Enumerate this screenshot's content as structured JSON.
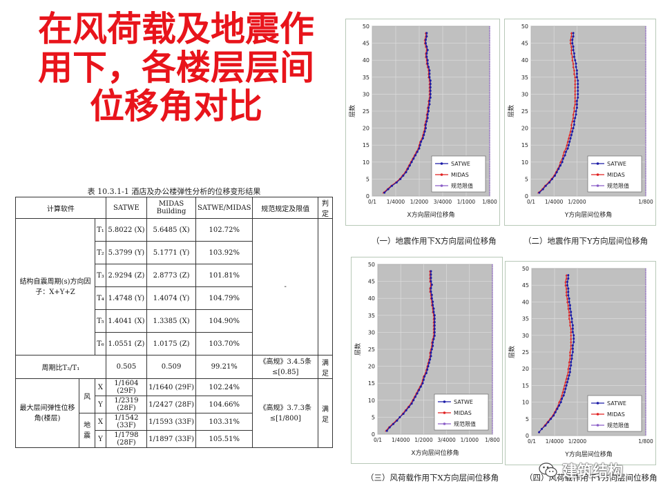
{
  "title_lines": [
    "在风荷载及地震作",
    "用下，各楼层层间",
    "位移角对比"
  ],
  "table": {
    "caption": "表 10.3.1-1  酒店及办公楼弹性分析的位移变形结果",
    "headers": [
      "计算软件",
      "SATWE",
      "MIDAS Building",
      "SATWE/MIDAS",
      "规范规定及限值",
      "判定"
    ],
    "period_group_label": "结构自震周期(s)方向因子：X+Y+Z",
    "period_rows": [
      {
        "label": "T₁",
        "satwe": "5.8022 (X)",
        "midas": "5.6485 (X)",
        "ratio": "102.72%"
      },
      {
        "label": "T₂",
        "satwe": "5.3799 (Y)",
        "midas": "5.1771 (Y)",
        "ratio": "103.92%"
      },
      {
        "label": "T₃",
        "satwe": "2.9294 (Z)",
        "midas": "2.8773 (Z)",
        "ratio": "101.81%"
      },
      {
        "label": "T₄",
        "satwe": "1.4748 (Y)",
        "midas": "1.4074 (Y)",
        "ratio": "104.79%"
      },
      {
        "label": "T₅",
        "satwe": "1.4041 (X)",
        "midas": "1.3385 (X)",
        "ratio": "104.90%"
      },
      {
        "label": "T₆",
        "satwe": "1.0551 (Z)",
        "midas": "1.0175 (Z)",
        "ratio": "103.70%"
      }
    ],
    "period_spec": "-",
    "ratio_row": {
      "label": "周期比T₃/T₁",
      "satwe": "0.505",
      "midas": "0.509",
      "ratio": "99.21%",
      "spec": "《高规》3.4.5条≤[0.85]",
      "verdict": "满足"
    },
    "drift_group_label": "最大层间弹性位移角(楼层)",
    "wind_label": "风",
    "quake_label": "地震",
    "drift_rows": [
      {
        "dir": "X",
        "satwe": "1/1604 (29F)",
        "midas": "1/1640 (29F)",
        "ratio": "102.24%"
      },
      {
        "dir": "Y",
        "satwe": "1/2319 (28F)",
        "midas": "1/2427 (28F)",
        "ratio": "104.66%"
      },
      {
        "dir": "X",
        "satwe": "1/1542 (33F)",
        "midas": "1/1593 (33F)",
        "ratio": "103.31%"
      },
      {
        "dir": "Y",
        "satwe": "1/1798 (28F)",
        "midas": "1/1897 (33F)",
        "ratio": "105.51%"
      }
    ],
    "drift_spec": "《高规》3.7.3条≤[1/800]",
    "drift_verdict": "满足"
  },
  "chart_data": [
    {
      "type": "line",
      "caption": "（一）地震作用下X方向层间位移角",
      "xlabel": "X方向层间位移角",
      "ylabel": "层数",
      "x_tick_labels": [
        "0/1",
        "1/4000",
        "1/2000",
        "3/4000",
        "1/1000",
        "1/800"
      ],
      "xlim": [
        0,
        0.00125
      ],
      "ylim": [
        0,
        50
      ],
      "y_ticks": [
        0,
        5,
        10,
        15,
        20,
        25,
        30,
        35,
        40,
        45,
        50
      ],
      "legend": [
        "SATWE",
        "MIDAS",
        "规范限值"
      ],
      "legend_position": "bottom-right",
      "limit_value": 0.00125,
      "floor_start": 1,
      "floor_end": 48,
      "satwe": [
        0.00013,
        0.00017,
        0.00021,
        0.00026,
        0.0003,
        0.00033,
        0.00036,
        0.00038,
        0.0004,
        0.00042,
        0.00044,
        0.00046,
        0.00048,
        0.0005,
        0.00051,
        0.00052,
        0.00054,
        0.00055,
        0.00056,
        0.00057,
        0.00057,
        0.00058,
        0.00059,
        0.00059,
        0.0006,
        0.0006,
        0.00061,
        0.00061,
        0.00062,
        0.00062,
        0.00062,
        0.00062,
        0.00062,
        0.00062,
        0.00061,
        0.00061,
        0.00061,
        0.0006,
        0.00059,
        0.00059,
        0.00058,
        0.00058,
        0.00059,
        0.00058,
        0.00057,
        0.00057,
        0.00058,
        0.00058
      ],
      "midas": [
        0.00012,
        0.00016,
        0.0002,
        0.00025,
        0.00029,
        0.00032,
        0.00035,
        0.00037,
        0.00039,
        0.00041,
        0.00043,
        0.00045,
        0.00047,
        0.00049,
        0.0005,
        0.00051,
        0.00053,
        0.00054,
        0.00055,
        0.00056,
        0.00056,
        0.00057,
        0.00058,
        0.00058,
        0.00059,
        0.00059,
        0.0006,
        0.0006,
        0.00061,
        0.00061,
        0.00061,
        0.00061,
        0.00061,
        0.00061,
        0.0006,
        0.0006,
        0.0006,
        0.00059,
        0.00058,
        0.00058,
        0.00057,
        0.00057,
        0.00058,
        0.00057,
        0.00056,
        0.00056,
        0.00057,
        0.00057
      ]
    },
    {
      "type": "line",
      "caption": "（二）地震作用下Y方向层间位移角",
      "xlabel": "Y方向层间位移角",
      "ylabel": "层数",
      "x_tick_labels": [
        "0/1",
        "1/4000",
        "1/2000",
        "1/800"
      ],
      "xlim": [
        0,
        0.00125
      ],
      "ylim": [
        0,
        50
      ],
      "y_ticks": [
        0,
        5,
        10,
        15,
        20,
        25,
        30,
        35,
        40,
        45,
        50
      ],
      "legend": [
        "SATWE",
        "MIDAS",
        "规范限值"
      ],
      "legend_position": "bottom-right",
      "limit_value": 0.00125,
      "floor_start": 1,
      "floor_end": 48,
      "satwe": [
        9e-05,
        0.00013,
        0.00016,
        0.0002,
        0.00023,
        0.00026,
        0.00028,
        0.0003,
        0.00032,
        0.00034,
        0.00035,
        0.00037,
        0.00038,
        0.0004,
        0.00041,
        0.00042,
        0.00043,
        0.00044,
        0.00045,
        0.00046,
        0.00047,
        0.00047,
        0.00048,
        0.00049,
        0.00049,
        0.0005,
        0.0005,
        0.0005,
        0.00051,
        0.00051,
        0.00051,
        0.00051,
        0.00051,
        0.00051,
        0.0005,
        0.0005,
        0.0005,
        0.00049,
        0.00049,
        0.00048,
        0.00047,
        0.00047,
        0.00046,
        0.00046,
        0.00045,
        0.00045,
        0.00046,
        0.00046
      ],
      "midas": [
        8e-05,
        0.00012,
        0.00015,
        0.00019,
        0.00022,
        0.00025,
        0.00027,
        0.00029,
        0.00031,
        0.00032,
        0.00034,
        0.00035,
        0.00036,
        0.00038,
        0.00039,
        0.0004,
        0.00041,
        0.00042,
        0.00043,
        0.00044,
        0.00044,
        0.00045,
        0.00046,
        0.00046,
        0.00047,
        0.00047,
        0.00048,
        0.00048,
        0.00048,
        0.00048,
        0.00048,
        0.00048,
        0.00048,
        0.00048,
        0.00048,
        0.00047,
        0.00047,
        0.00046,
        0.00046,
        0.00045,
        0.00045,
        0.00044,
        0.00044,
        0.00044,
        0.00043,
        0.00043,
        0.00044,
        0.00044
      ]
    },
    {
      "type": "line",
      "caption": "（三）风荷载作用下X方向层间位移角",
      "xlabel": "X方向层间位移角",
      "ylabel": "层数",
      "x_tick_labels": [
        "0/1",
        "1/4000",
        "1/2000",
        "3/4000",
        "1/1000",
        "1/800"
      ],
      "xlim": [
        0,
        0.00125
      ],
      "ylim": [
        0,
        50
      ],
      "y_ticks": [
        0,
        5,
        10,
        15,
        20,
        25,
        30,
        35,
        40,
        45,
        50
      ],
      "legend": [
        "SATWE",
        "MIDAS",
        "规范限值"
      ],
      "legend_position": "bottom-right",
      "limit_value": 0.00125,
      "floor_start": 1,
      "floor_end": 48,
      "satwe": [
        0.0001,
        0.00013,
        0.00017,
        0.00021,
        0.00024,
        0.00028,
        0.00031,
        0.00034,
        0.00037,
        0.00039,
        0.00041,
        0.00043,
        0.00045,
        0.00047,
        0.00049,
        0.0005,
        0.00051,
        0.00053,
        0.00054,
        0.00055,
        0.00056,
        0.00057,
        0.00058,
        0.00058,
        0.00059,
        0.0006,
        0.0006,
        0.00061,
        0.00062,
        0.00062,
        0.00062,
        0.00062,
        0.00062,
        0.00062,
        0.00062,
        0.00061,
        0.00061,
        0.0006,
        0.0006,
        0.00059,
        0.00059,
        0.00058,
        0.00058,
        0.00059,
        0.00058,
        0.00058,
        0.00058,
        0.00058
      ],
      "midas": [
        9e-05,
        0.00012,
        0.00016,
        0.0002,
        0.00024,
        0.00027,
        0.0003,
        0.00033,
        0.00036,
        0.00038,
        0.0004,
        0.00042,
        0.00044,
        0.00046,
        0.00048,
        0.00049,
        0.0005,
        0.00052,
        0.00053,
        0.00054,
        0.00055,
        0.00056,
        0.00057,
        0.00057,
        0.00058,
        0.00059,
        0.00059,
        0.0006,
        0.00061,
        0.00061,
        0.00061,
        0.00061,
        0.00061,
        0.00061,
        0.00061,
        0.0006,
        0.0006,
        0.00059,
        0.00059,
        0.00058,
        0.00058,
        0.00057,
        0.00057,
        0.00058,
        0.00057,
        0.00057,
        0.00057,
        0.00057
      ]
    },
    {
      "type": "line",
      "caption": "（四）风荷载作用下Y方向层间位移角",
      "xlabel": "Y方向层间位移角",
      "ylabel": "层数",
      "x_tick_labels": [
        "0/1",
        "1/4000",
        "1/2000",
        "1/800"
      ],
      "xlim": [
        0,
        0.00125
      ],
      "ylim": [
        0,
        50
      ],
      "y_ticks": [
        0,
        5,
        10,
        15,
        20,
        25,
        30,
        35,
        40,
        45,
        50
      ],
      "legend": [
        "SATWE",
        "MIDAS",
        "规范限值"
      ],
      "legend_position": "bottom-right",
      "limit_value": 0.00125,
      "floor_start": 1,
      "floor_end": 48,
      "satwe": [
        8e-05,
        0.00011,
        0.00015,
        0.00018,
        0.00021,
        0.00024,
        0.00026,
        0.00028,
        0.0003,
        0.00032,
        0.00033,
        0.00035,
        0.00036,
        0.00037,
        0.00038,
        0.00039,
        0.0004,
        0.00041,
        0.00042,
        0.00042,
        0.00043,
        0.00043,
        0.00044,
        0.00044,
        0.00045,
        0.00045,
        0.00045,
        0.00046,
        0.00046,
        0.00046,
        0.00045,
        0.00045,
        0.00045,
        0.00044,
        0.00044,
        0.00043,
        0.00043,
        0.00042,
        0.00042,
        0.00041,
        0.00041,
        0.0004,
        0.0004,
        0.0004,
        0.00039,
        0.00039,
        0.0004,
        0.0004
      ],
      "midas": [
        8e-05,
        0.00011,
        0.00014,
        0.00017,
        0.0002,
        0.00023,
        0.00025,
        0.00027,
        0.00029,
        0.0003,
        0.00032,
        0.00033,
        0.00034,
        0.00035,
        0.00036,
        0.00037,
        0.00038,
        0.00039,
        0.0004,
        0.0004,
        0.00041,
        0.00041,
        0.00042,
        0.00042,
        0.00042,
        0.00043,
        0.00043,
        0.00043,
        0.00043,
        0.00043,
        0.00043,
        0.00043,
        0.00042,
        0.00042,
        0.00041,
        0.00041,
        0.00041,
        0.0004,
        0.0004,
        0.00039,
        0.00039,
        0.00038,
        0.00038,
        0.00038,
        0.00037,
        0.00037,
        0.00038,
        0.00038
      ]
    }
  ],
  "colors": {
    "title": "#e8141b",
    "satwe": "#1a1aa6",
    "midas": "#e01f1f",
    "limit": "#8a5cc7",
    "plot_bg": "#c0c0c0"
  },
  "watermark": {
    "text": "建筑结构",
    "icon": "wechat-icon"
  }
}
